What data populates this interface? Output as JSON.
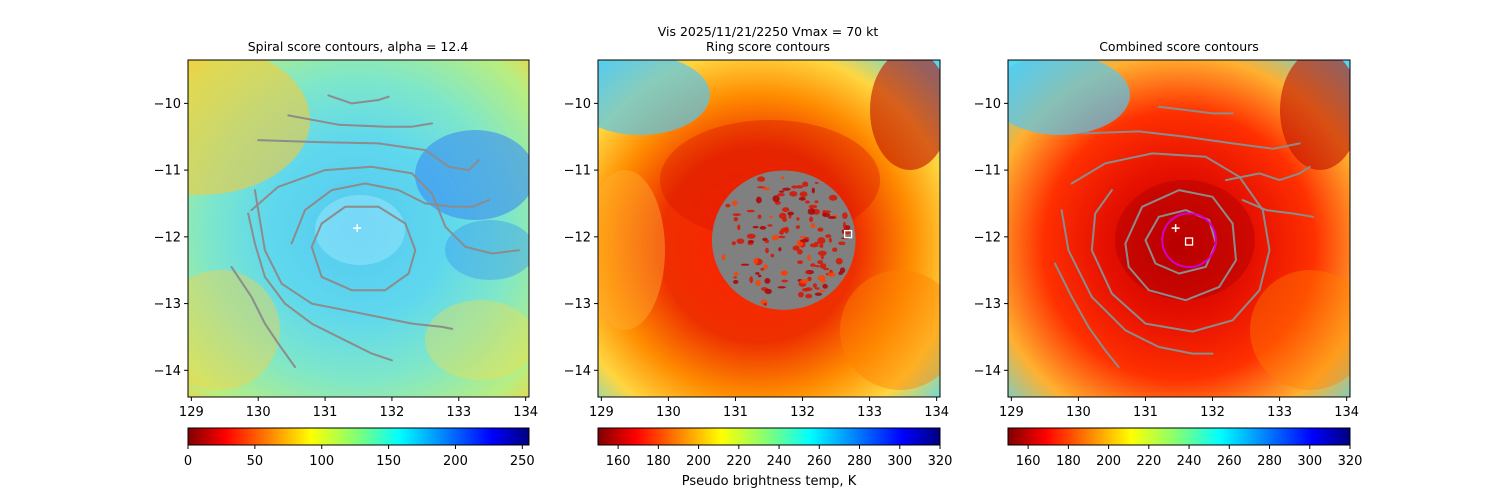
{
  "figure": {
    "suptitle_line1": "Vis  2025/11/21/2250    Vmax = 70 kt",
    "colorbar_label": "Pseudo brightness temp, K"
  },
  "colors": {
    "contour": "#8c8c8c",
    "track_circle": "#d000d0",
    "marker": "#ffffff",
    "ring_mask": "#808080"
  },
  "chart_data": [
    {
      "type": "heatmap",
      "title": "Spiral score contours, alpha = 12.4",
      "colormap": "jet",
      "xlim": [
        128.95,
        134.05
      ],
      "ylim": [
        -14.4,
        -9.35
      ],
      "xticks": [
        "129",
        "130",
        "131",
        "132",
        "133",
        "134"
      ],
      "yticks": [
        "−10",
        "−11",
        "−12",
        "−13",
        "−14"
      ],
      "center_marker": {
        "symbol": "+",
        "lon": 131.48,
        "lat": -11.87
      },
      "colorbar": {
        "range": [
          0,
          255
        ],
        "ticks": [
          "0",
          "50",
          "100",
          "150",
          "200",
          "250"
        ]
      },
      "contours": [
        [
          [
            129.6,
            -12.45
          ],
          [
            129.9,
            -12.9
          ],
          [
            130.1,
            -13.3
          ],
          [
            130.3,
            -13.6
          ],
          [
            130.55,
            -13.95
          ]
        ],
        [
          [
            129.85,
            -11.65
          ],
          [
            129.95,
            -12.1
          ],
          [
            130.1,
            -12.6
          ],
          [
            130.4,
            -13.0
          ],
          [
            130.8,
            -13.3
          ],
          [
            131.3,
            -13.55
          ],
          [
            131.7,
            -13.75
          ],
          [
            132.0,
            -13.85
          ]
        ],
        [
          [
            129.95,
            -11.3
          ],
          [
            130.1,
            -12.2
          ],
          [
            130.35,
            -12.7
          ],
          [
            130.8,
            -13.0
          ],
          [
            131.3,
            -13.1
          ],
          [
            131.8,
            -13.2
          ],
          [
            132.3,
            -13.3
          ],
          [
            132.75,
            -13.35
          ],
          [
            132.9,
            -13.38
          ]
        ],
        [
          [
            130.0,
            -10.55
          ],
          [
            130.9,
            -10.58
          ],
          [
            131.8,
            -10.6
          ],
          [
            132.5,
            -10.7
          ],
          [
            132.85,
            -10.95
          ],
          [
            133.15,
            -11.0
          ],
          [
            133.3,
            -10.85
          ]
        ],
        [
          [
            129.9,
            -11.6
          ],
          [
            130.3,
            -11.25
          ],
          [
            131.0,
            -11.0
          ],
          [
            131.7,
            -10.95
          ],
          [
            132.3,
            -11.05
          ],
          [
            132.6,
            -11.35
          ],
          [
            132.8,
            -11.85
          ],
          [
            133.1,
            -12.15
          ],
          [
            133.5,
            -12.25
          ],
          [
            133.9,
            -12.2
          ]
        ],
        [
          [
            130.5,
            -12.1
          ],
          [
            130.7,
            -11.6
          ],
          [
            131.1,
            -11.3
          ],
          [
            131.6,
            -11.2
          ],
          [
            132.1,
            -11.3
          ],
          [
            132.5,
            -11.5
          ],
          [
            132.9,
            -11.55
          ],
          [
            133.2,
            -11.55
          ],
          [
            133.45,
            -11.45
          ]
        ],
        [
          [
            130.8,
            -12.15
          ],
          [
            130.95,
            -11.8
          ],
          [
            131.3,
            -11.55
          ],
          [
            131.8,
            -11.55
          ],
          [
            132.2,
            -11.8
          ],
          [
            132.35,
            -12.2
          ],
          [
            132.25,
            -12.55
          ],
          [
            131.9,
            -12.8
          ],
          [
            131.4,
            -12.8
          ],
          [
            130.95,
            -12.6
          ],
          [
            130.8,
            -12.15
          ]
        ],
        [
          [
            130.45,
            -10.18
          ],
          [
            131.2,
            -10.32
          ],
          [
            131.9,
            -10.35
          ],
          [
            132.3,
            -10.35
          ],
          [
            132.6,
            -10.3
          ]
        ],
        [
          [
            131.05,
            -9.88
          ],
          [
            131.4,
            -10.0
          ],
          [
            131.8,
            -9.95
          ],
          [
            131.95,
            -9.9
          ]
        ]
      ]
    },
    {
      "type": "heatmap",
      "title": "Ring score contours",
      "colormap": "jet",
      "xlim": [
        128.95,
        134.05
      ],
      "ylim": [
        -14.4,
        -9.35
      ],
      "xticks": [
        "129",
        "130",
        "131",
        "132",
        "133",
        "134"
      ],
      "yticks": [
        "−10",
        "−11",
        "−12",
        "−13",
        "−14"
      ],
      "ring_region": {
        "center_lon": 131.72,
        "center_lat": -12.05,
        "radius_deg": 1.05
      },
      "square_marker": {
        "lon": 132.68,
        "lat": -11.96
      },
      "colorbar": {
        "range": [
          150,
          320
        ],
        "ticks": [
          "160",
          "180",
          "200",
          "220",
          "240",
          "260",
          "280",
          "300",
          "320"
        ]
      }
    },
    {
      "type": "heatmap",
      "title": "Combined score contours",
      "colormap": "jet",
      "xlim": [
        128.95,
        134.05
      ],
      "ylim": [
        -14.4,
        -9.35
      ],
      "xticks": [
        "129",
        "130",
        "131",
        "132",
        "133",
        "134"
      ],
      "yticks": [
        "−10",
        "−11",
        "−12",
        "−13",
        "−14"
      ],
      "center_marker": {
        "symbol": "+",
        "lon": 131.45,
        "lat": -11.87
      },
      "square_marker": {
        "lon": 131.65,
        "lat": -12.07
      },
      "circle": {
        "center_lon": 131.65,
        "center_lat": -12.05,
        "radius_deg": 0.4
      },
      "colorbar": {
        "range": [
          150,
          320
        ],
        "ticks": [
          "160",
          "180",
          "200",
          "220",
          "240",
          "260",
          "280",
          "300",
          "320"
        ]
      },
      "contours": [
        [
          [
            129.65,
            -12.4
          ],
          [
            129.9,
            -12.9
          ],
          [
            130.15,
            -13.35
          ],
          [
            130.4,
            -13.7
          ],
          [
            130.6,
            -13.95
          ]
        ],
        [
          [
            129.75,
            -11.6
          ],
          [
            129.85,
            -12.2
          ],
          [
            130.2,
            -12.9
          ],
          [
            130.7,
            -13.4
          ],
          [
            131.2,
            -13.65
          ],
          [
            131.7,
            -13.75
          ],
          [
            132.0,
            -13.75
          ]
        ],
        [
          [
            129.9,
            -11.2
          ],
          [
            130.4,
            -10.9
          ],
          [
            131.1,
            -10.75
          ],
          [
            131.9,
            -10.8
          ],
          [
            132.4,
            -11.1
          ],
          [
            132.75,
            -11.6
          ],
          [
            132.85,
            -12.2
          ],
          [
            132.7,
            -12.8
          ],
          [
            132.3,
            -13.25
          ],
          [
            131.7,
            -13.42
          ],
          [
            131.0,
            -13.3
          ],
          [
            130.5,
            -12.85
          ],
          [
            130.2,
            -12.2
          ],
          [
            130.25,
            -11.65
          ],
          [
            130.5,
            -11.3
          ]
        ],
        [
          [
            130.7,
            -12.1
          ],
          [
            130.95,
            -11.55
          ],
          [
            131.5,
            -11.3
          ],
          [
            132.0,
            -11.4
          ],
          [
            132.3,
            -11.8
          ],
          [
            132.35,
            -12.35
          ],
          [
            132.1,
            -12.75
          ],
          [
            131.6,
            -12.95
          ],
          [
            131.05,
            -12.8
          ],
          [
            130.75,
            -12.45
          ],
          [
            130.7,
            -12.1
          ]
        ],
        [
          [
            131.0,
            -12.05
          ],
          [
            131.2,
            -11.7
          ],
          [
            131.6,
            -11.6
          ],
          [
            131.95,
            -11.75
          ],
          [
            132.05,
            -12.1
          ],
          [
            131.9,
            -12.45
          ],
          [
            131.5,
            -12.55
          ],
          [
            131.15,
            -12.4
          ],
          [
            131.0,
            -12.05
          ]
        ],
        [
          [
            130.05,
            -10.45
          ],
          [
            130.9,
            -10.42
          ],
          [
            131.6,
            -10.5
          ],
          [
            132.3,
            -10.6
          ],
          [
            132.9,
            -10.68
          ],
          [
            133.3,
            -10.6
          ]
        ],
        [
          [
            132.2,
            -11.15
          ],
          [
            132.7,
            -11.05
          ],
          [
            133.0,
            -11.15
          ],
          [
            133.3,
            -11.05
          ],
          [
            133.45,
            -10.95
          ]
        ],
        [
          [
            132.45,
            -11.45
          ],
          [
            132.8,
            -11.6
          ],
          [
            133.2,
            -11.65
          ],
          [
            133.5,
            -11.7
          ]
        ],
        [
          [
            131.2,
            -10.05
          ],
          [
            131.6,
            -10.1
          ],
          [
            132.0,
            -10.15
          ],
          [
            132.3,
            -10.15
          ]
        ]
      ]
    }
  ]
}
